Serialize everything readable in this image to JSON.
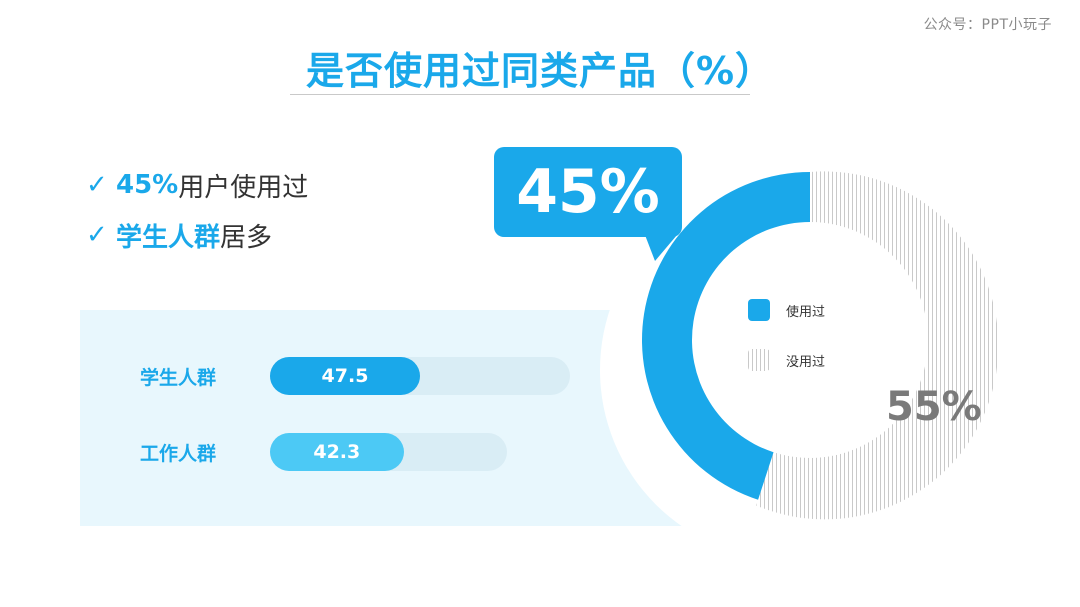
{
  "watermark": "公众号：PPT小玩子",
  "title": "是否使用过同类产品（%）",
  "bullets": [
    {
      "highlight": "45%",
      "rest": "用户使用过"
    },
    {
      "highlight": "学生人群",
      "rest": "居多"
    }
  ],
  "colors": {
    "accent": "#1aa8ea",
    "accent_light": "#4cc9f5",
    "track": "#d9edf5",
    "hatch": "#c9c9c9"
  },
  "chart_data": [
    {
      "type": "bar",
      "orientation": "horizontal",
      "categories": [
        "学生人群",
        "工作人群"
      ],
      "values": [
        47.5,
        42.3
      ],
      "value_labels": [
        "47.5",
        "42.3"
      ]
    },
    {
      "type": "pie",
      "style": "donut",
      "labels": [
        "使用过",
        "没用过"
      ],
      "values": [
        45,
        55
      ],
      "value_labels": [
        "45%",
        "55%"
      ],
      "legend": "center"
    }
  ]
}
